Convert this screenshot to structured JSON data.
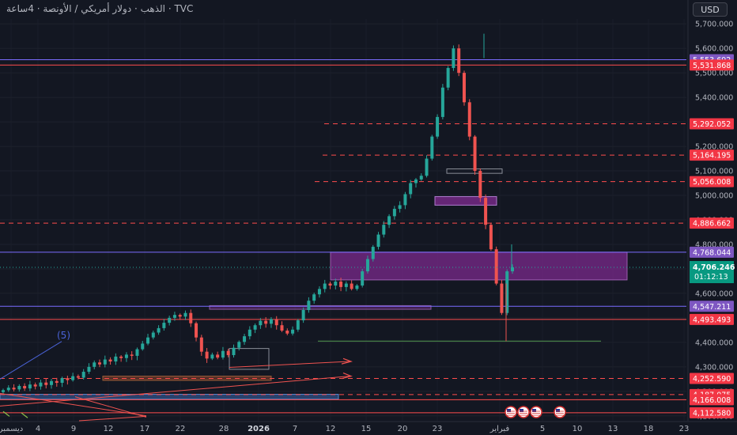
{
  "header": {
    "title": "TVC · الذهب · دولار أمريكي / الأونصة · 4ساعة",
    "currency": "USD"
  },
  "colors": {
    "background": "#131722",
    "up": "#26a69a",
    "down": "#ef5350",
    "support_line": "#ff4d4d",
    "blue_line": "#7b6cff",
    "purple_zone": "#7b2a8c",
    "price_tag_red": "#f23645",
    "price_tag_purple": "#7e57c2",
    "price_tag_current": "#089981"
  },
  "chart_data": {
    "type": "candlestick",
    "title": "",
    "y_ticks": [
      "5,700.000",
      "5,600.000",
      "5,500.000",
      "5,400.000",
      "5,300.000",
      "5,200.000",
      "5,100.000",
      "5,000.000",
      "4,900.000",
      "4,800.000",
      "4,700.000",
      "4,600.000",
      "4,500.000",
      "4,400.000",
      "4,300.000",
      "4,200.000",
      "4,100.000"
    ],
    "y_range": [
      4080,
      5720
    ],
    "x_ticks": [
      "ديسمبر",
      "4",
      "9",
      "12",
      "17",
      "22",
      "28",
      "2026",
      "7",
      "12",
      "15",
      "20",
      "23",
      "فبراير",
      "5",
      "10",
      "13",
      "18",
      "23"
    ],
    "price_levels": [
      {
        "label": "5,553.692",
        "value": 5553.692,
        "kind": "blue-solid",
        "tag": "purple"
      },
      {
        "label": "5,531.868",
        "value": 5531.868,
        "kind": "red-solid",
        "tag": "red"
      },
      {
        "label": "5,292.052",
        "value": 5292.052,
        "kind": "red-dashed",
        "tag": "red"
      },
      {
        "label": "5,164.195",
        "value": 5164.195,
        "kind": "red-dashed",
        "tag": "red"
      },
      {
        "label": "5,056.008",
        "value": 5056.008,
        "kind": "red-dashed",
        "tag": "red"
      },
      {
        "label": "4,886.662",
        "value": 4886.662,
        "kind": "red-dashed",
        "tag": "red"
      },
      {
        "label": "4,768.044",
        "value": 4768.044,
        "kind": "blue-solid",
        "tag": "purple"
      },
      {
        "label": "4,547.211",
        "value": 4547.211,
        "kind": "blue-solid",
        "tag": "purple"
      },
      {
        "label": "4,493.493",
        "value": 4493.493,
        "kind": "red-solid",
        "tag": "red"
      },
      {
        "label": "4,252.590",
        "value": 4252.59,
        "kind": "red-dashed",
        "tag": "red"
      },
      {
        "label": "4,187.075",
        "value": 4187.075,
        "kind": "red-dashed",
        "tag": "red"
      },
      {
        "label": "4,166.008",
        "value": 4166.008,
        "kind": "red-solid",
        "tag": "red"
      },
      {
        "label": "4,112.580",
        "value": 4112.58,
        "kind": "red-solid",
        "tag": "red"
      }
    ],
    "current_price": {
      "label": "4,706.246",
      "value": 4706.246,
      "countdown": "01:12:13"
    },
    "annotations": [
      {
        "text": "(5)"
      }
    ],
    "zones": [
      {
        "name": "main-purple-zone",
        "y_low": 4655,
        "y_high": 4768
      },
      {
        "name": "upper-purple-zone",
        "y_low": 4960,
        "y_high": 4995
      },
      {
        "name": "lower-purple-zone",
        "y_low": 4535,
        "y_high": 4550
      },
      {
        "name": "brown-zone",
        "y_low": 4245,
        "y_high": 4262
      },
      {
        "name": "blue-zone",
        "y_low": 4168,
        "y_high": 4188
      }
    ],
    "closes": [
      4205,
      4215,
      4208,
      4222,
      4212,
      4228,
      4220,
      4236,
      4226,
      4242,
      4235,
      4254,
      4246,
      4262,
      4256,
      4280,
      4300,
      4318,
      4310,
      4330,
      4322,
      4342,
      4336,
      4350,
      4345,
      4372,
      4395,
      4420,
      4440,
      4458,
      4480,
      4500,
      4512,
      4505,
      4520,
      4478,
      4420,
      4362,
      4334,
      4350,
      4338,
      4365,
      4348,
      4378,
      4402,
      4425,
      4452,
      4470,
      4488,
      4476,
      4495,
      4470,
      4448,
      4436,
      4452,
      4490,
      4532,
      4570,
      4596,
      4618,
      4640,
      4632,
      4648,
      4626,
      4640,
      4618,
      4632,
      4690,
      4740,
      4790,
      4840,
      4880,
      4915,
      4945,
      4960,
      5005,
      5050,
      5065,
      5080,
      5150,
      5240,
      5320,
      5440,
      5520,
      5600,
      5500,
      5380,
      5240,
      5100,
      4990,
      4880,
      4780,
      4640,
      4520,
      4690,
      4706.246
    ]
  }
}
